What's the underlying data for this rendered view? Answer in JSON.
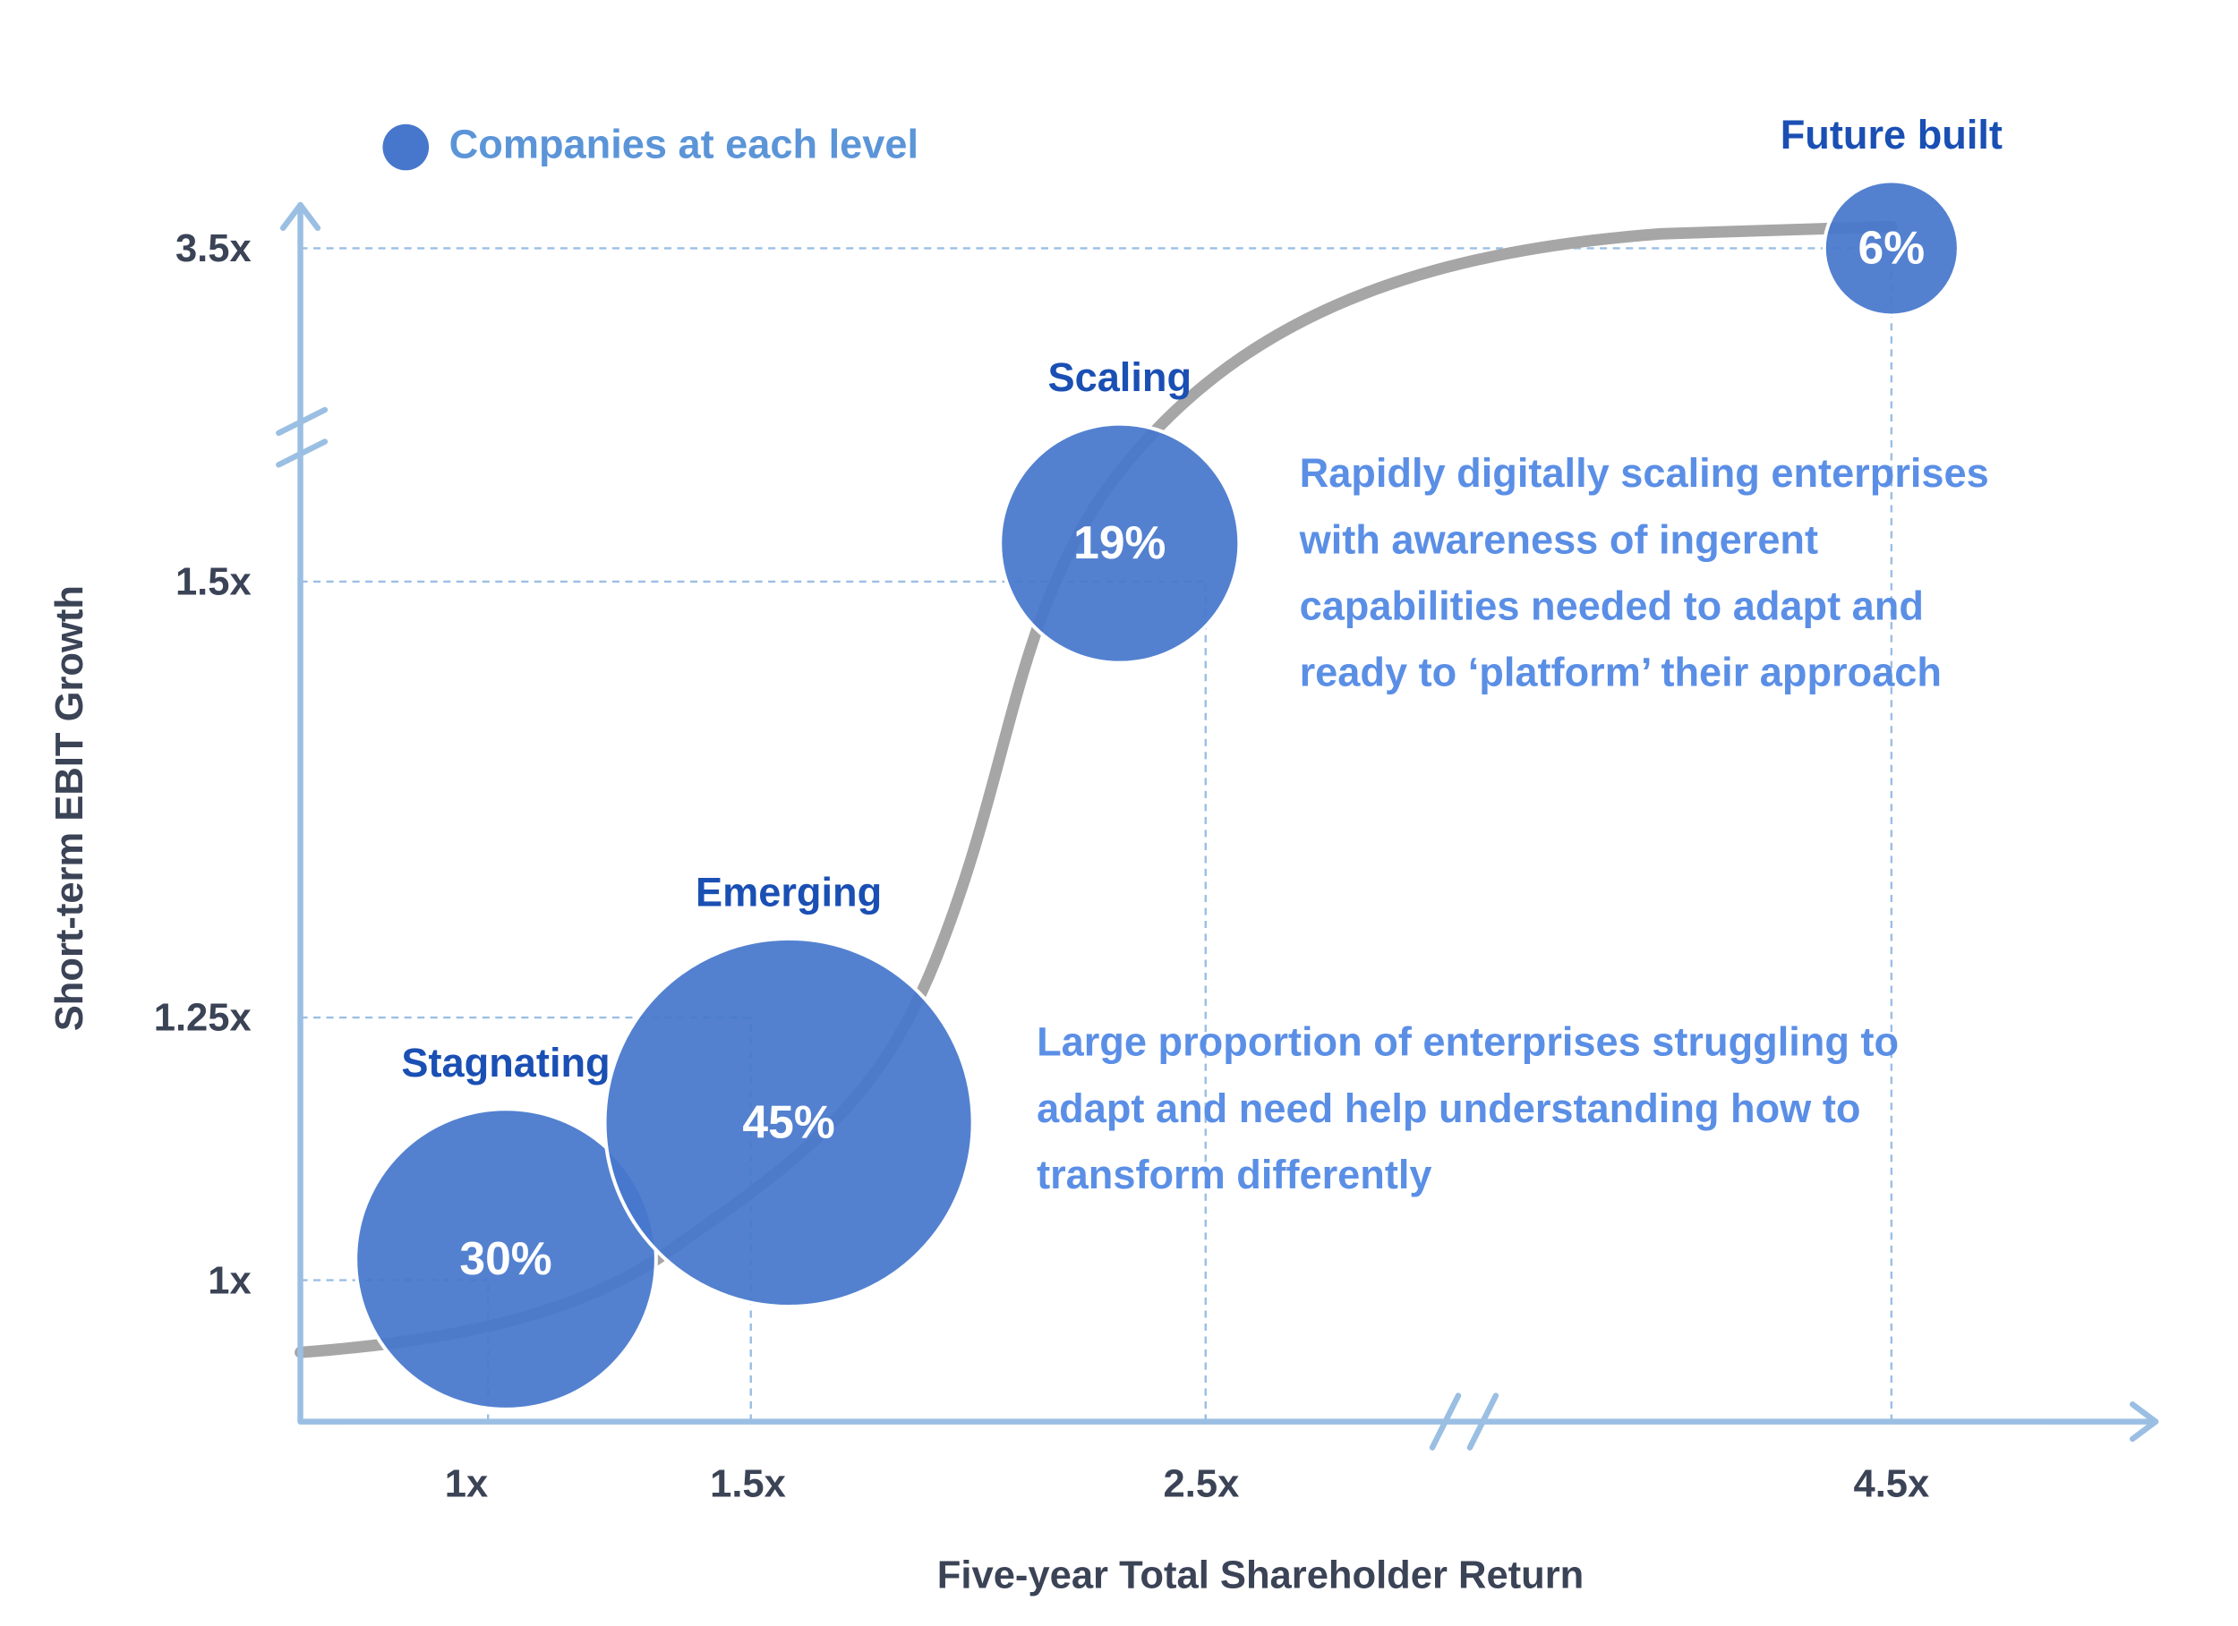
{
  "chart_data": {
    "type": "bubble",
    "x_label": "Five-year Total Shareholder Return",
    "y_label": "Short-term EBIT Growth",
    "xticks": [
      {
        "value": 1,
        "label": "1x"
      },
      {
        "value": 1.5,
        "label": "1.5x"
      },
      {
        "value": 2.5,
        "label": "2.5x"
      },
      {
        "value": 4.5,
        "label": "4.5x"
      }
    ],
    "yticks": [
      {
        "value": 1,
        "label": "1x"
      },
      {
        "value": 1.25,
        "label": "1.25x"
      },
      {
        "value": 1.5,
        "label": "1.5x"
      },
      {
        "value": 3.5,
        "label": "3.5x"
      }
    ],
    "series": [
      {
        "name": "Companies at each level",
        "color": "#4677cc",
        "labels": [
          "Stagnating",
          "Emerging",
          "Scaling",
          "Future built"
        ],
        "x": [
          1.07,
          1.59,
          2.32,
          4.5
        ],
        "values": [
          1.02,
          1.15,
          1.73,
          3.5
        ],
        "sizes": [
          30,
          45,
          19,
          6
        ],
        "size_labels": [
          "30%",
          "45%",
          "19%",
          "6%"
        ]
      }
    ],
    "annotations": [
      {
        "lines": [
          "Rapidly digitally scaling enterprises",
          "with awareness of ingerent",
          "capabilities needed to adapt and",
          "ready to ‘platform’ their approach"
        ]
      },
      {
        "lines": [
          "Large proportion of enterprises struggling to",
          "adapt and need help understanding how to",
          "transform differently"
        ]
      }
    ]
  }
}
